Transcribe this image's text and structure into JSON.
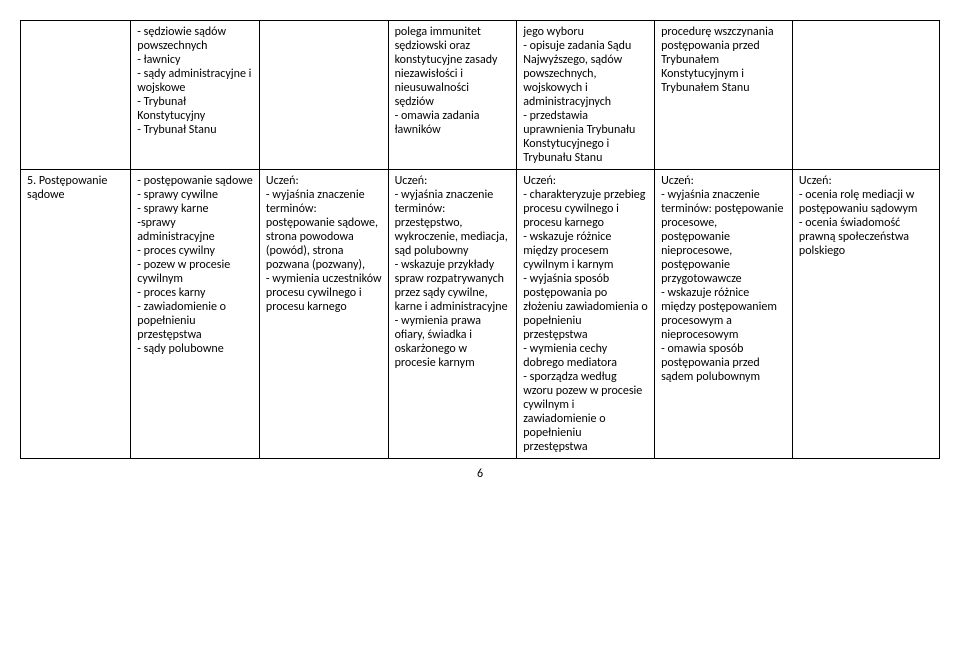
{
  "row1": {
    "c0": "",
    "c1": "- sędziowie sądów powszechnych\n- ławnicy\n- sądy administracyjne i wojskowe\n- Trybunał Konstytucyjny\n- Trybunał Stanu",
    "c2": "",
    "c3": "polega immunitet sędziowski oraz konstytucyjne zasady niezawisłości i nieusuwalności sędziów\n- omawia zadania ławników",
    "c4": "jego wyboru\n- opisuje zadania Sądu Najwyższego, sądów powszechnych, wojskowych i administracyjnych\n- przedstawia uprawnienia Trybunału Konstytucyjnego i Trybunału Stanu",
    "c5": "procedurę wszczynania postępowania przed Trybunałem Konstytucyjnym i Trybunałem Stanu",
    "c6": ""
  },
  "row2": {
    "c0": "5. Postępowanie sądowe",
    "c1": "- postępowanie sądowe\n- sprawy cywilne\n- sprawy karne\n-sprawy administracyjne\n- proces cywilny\n- pozew w procesie cywilnym\n- proces karny\n- zawiadomienie o popełnieniu przestępstwa\n- sądy polubowne",
    "c2": "Uczeń:\n- wyjaśnia znaczenie terminów: postępowanie sądowe, strona powodowa (powód), strona pozwana (pozwany),\n- wymienia uczestników procesu cywilnego i procesu karnego",
    "c3": "Uczeń:\n- wyjaśnia znaczenie terminów: przestępstwo, wykroczenie, mediacja, sąd polubowny\n- wskazuje przykłady spraw rozpatrywanych przez sądy cywilne, karne i administracyjne\n- wymienia prawa ofiary, świadka i oskarżonego w procesie karnym",
    "c4": "Uczeń:\n- charakteryzuje przebieg procesu cywilnego i procesu karnego\n- wskazuje różnice między procesem cywilnym i karnym\n- wyjaśnia sposób postępowania po złożeniu zawiadomienia o popełnieniu przestępstwa\n- wymienia cechy dobrego mediatora\n- sporządza według wzoru pozew w procesie cywilnym i zawiadomienie o popełnieniu przestępstwa",
    "c5": "Uczeń:\n- wyjaśnia znaczenie terminów: postępowanie procesowe, postępowanie nieprocesowe, postępowanie przygotowawcze\n- wskazuje różnice między postępowaniem procesowym a nieprocesowym\n- omawia sposób postępowania przed sądem polubownym",
    "c6": "Uczeń:\n- ocenia rolę mediacji w postępowaniu sądowym\n- ocenia świadomość prawną społeczeństwa polskiego"
  },
  "pagenum": "6"
}
